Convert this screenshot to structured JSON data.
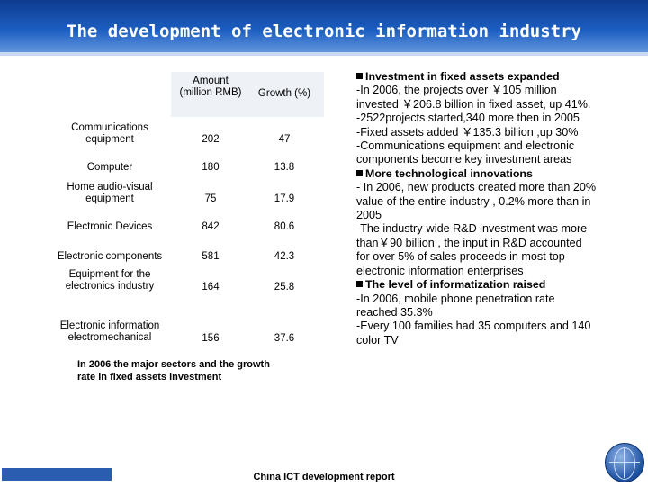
{
  "title": "The development of electronic information industry",
  "table": {
    "headers": {
      "amount": "Amount (million RMB)",
      "growth": "Growth (%)"
    },
    "rows": [
      {
        "sector": "Communications equipment",
        "amount": "202",
        "growth": "47"
      },
      {
        "sector": "Computer",
        "amount": "180",
        "growth": "13.8"
      },
      {
        "sector": "Home audio-visual equipment",
        "amount": "75",
        "growth": "17.9"
      },
      {
        "sector": "Electronic Devices",
        "amount": "842",
        "growth": "80.6"
      },
      {
        "sector": "Electronic components",
        "amount": "581",
        "growth": "42.3"
      },
      {
        "sector": "Equipment for the electronics industry",
        "amount": "164",
        "growth": "25.8"
      },
      {
        "sector": "Electronic information electromechanical",
        "amount": "156",
        "growth": "37.6"
      }
    ],
    "caption": "In 2006 the major sectors and the growth rate in fixed assets investment"
  },
  "right": {
    "heading1": "Investment in fixed assets expanded",
    "lines1": [
      " -In 2006, the projects over ￥105 million",
      "invested ￥206.8 billion in fixed asset, up 41%.",
      "-2522projects started,340 more then in 2005",
      "-Fixed assets added ￥135.3 billion ,up 30%",
      "-Communications equipment and electronic",
      "components become key investment areas"
    ],
    "heading2": "More technological innovations",
    "lines2": [
      "- In 2006, new products created more than 20%",
      "value of the entire industry , 0.2% more than in",
      "2005",
      "-The industry-wide R&D investment was more",
      "than￥90 billion , the input in R&D accounted",
      "for over 5% of sales proceeds in most top",
      "electronic information enterprises"
    ],
    "heading3": "The level of informatization raised",
    "lines3": [
      "-In 2006, mobile phone penetration rate",
      "reached 35.3%",
      "-Every 100 families had 35 computers and 140",
      "color TV"
    ]
  },
  "footer": "China ICT development report"
}
